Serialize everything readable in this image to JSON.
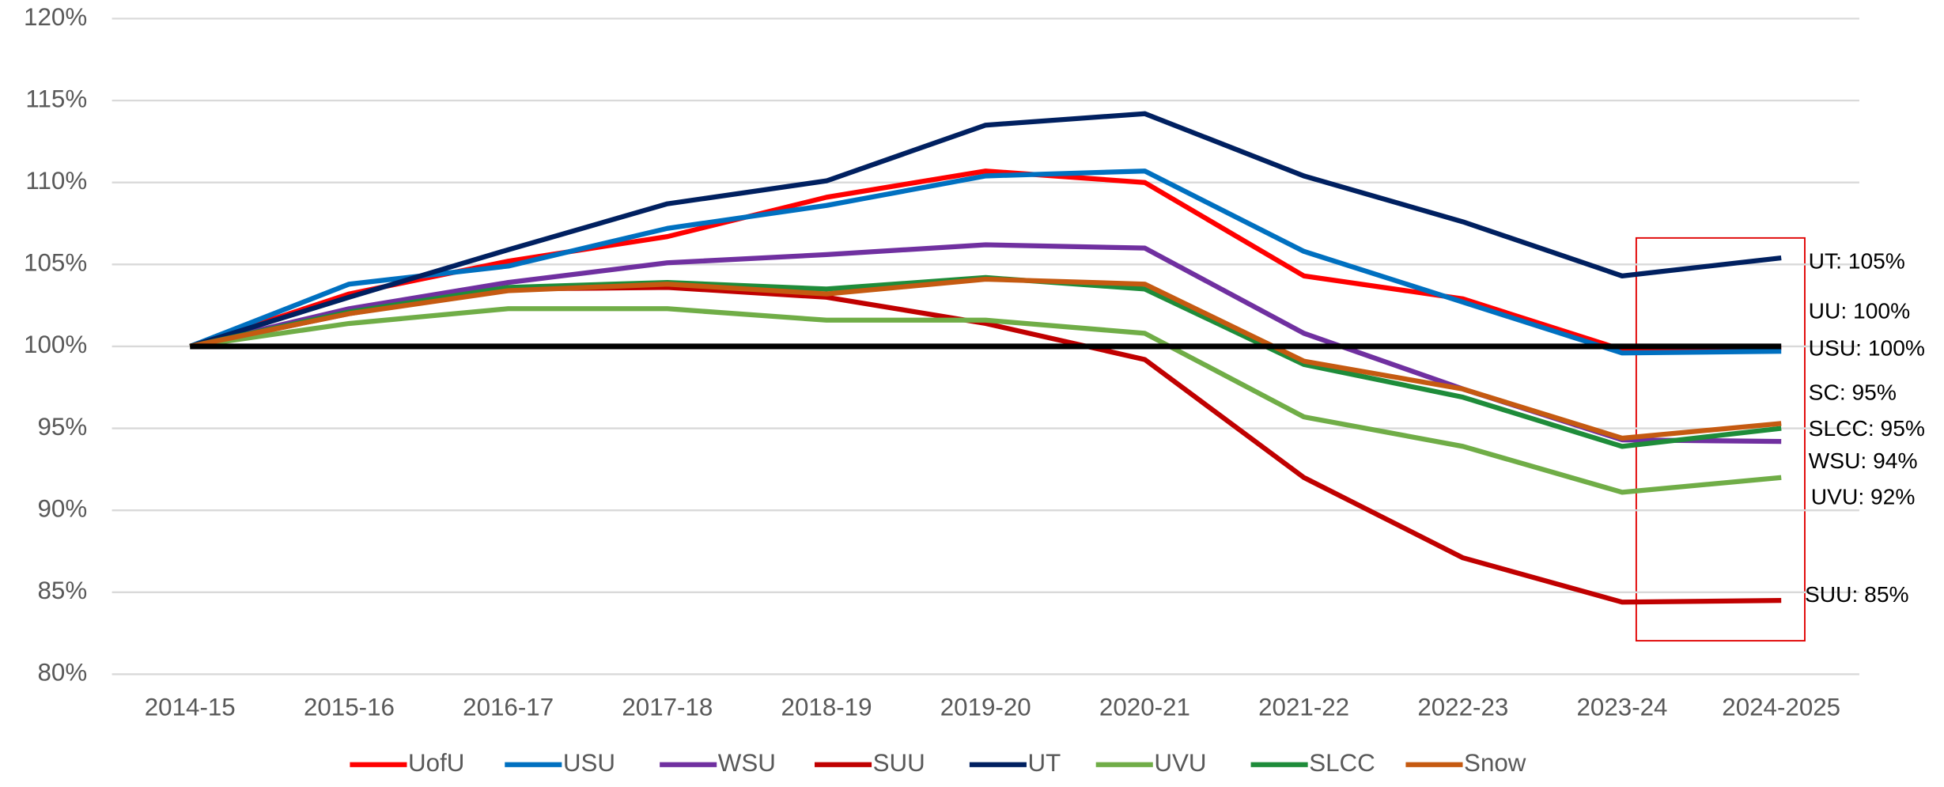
{
  "chart_data": {
    "type": "line",
    "categories": [
      "2014-15",
      "2015-16",
      "2016-17",
      "2017-18",
      "2018-19",
      "2019-20",
      "2020-21",
      "2021-22",
      "2022-23",
      "2023-24",
      "2024-2025"
    ],
    "series": [
      {
        "name": "UofU",
        "color": "#ff0000",
        "values": [
          100,
          103.2,
          105.2,
          106.7,
          109.1,
          110.7,
          110.0,
          104.3,
          102.9,
          99.8,
          99.9
        ]
      },
      {
        "name": "USU",
        "color": "#0070c0",
        "values": [
          100,
          103.8,
          104.9,
          107.2,
          108.6,
          110.4,
          110.7,
          105.8,
          102.7,
          99.6,
          99.7
        ]
      },
      {
        "name": "WSU",
        "color": "#7030a0",
        "values": [
          100,
          102.3,
          103.9,
          105.1,
          105.6,
          106.2,
          106.0,
          100.8,
          97.4,
          94.3,
          94.2
        ]
      },
      {
        "name": "SUU",
        "color": "#c00000",
        "values": [
          100,
          102.0,
          103.5,
          103.6,
          103.0,
          101.4,
          99.2,
          92.0,
          87.1,
          84.4,
          84.5
        ]
      },
      {
        "name": "UT",
        "color": "#002060",
        "values": [
          100,
          103.0,
          105.9,
          108.7,
          110.1,
          113.5,
          114.2,
          110.4,
          107.6,
          104.3,
          105.4
        ]
      },
      {
        "name": "UVU",
        "color": "#70ad47",
        "values": [
          100,
          101.4,
          102.3,
          102.3,
          101.6,
          101.6,
          100.8,
          95.7,
          93.9,
          91.1,
          92.0
        ]
      },
      {
        "name": "SLCC",
        "color": "#1e8c3a",
        "values": [
          100,
          102.1,
          103.6,
          103.9,
          103.5,
          104.2,
          103.5,
          98.9,
          96.9,
          93.9,
          95.0
        ]
      },
      {
        "name": "Snow",
        "color": "#c55a11",
        "values": [
          100,
          102.0,
          103.4,
          103.8,
          103.2,
          104.1,
          103.8,
          99.1,
          97.4,
          94.4,
          95.3
        ]
      }
    ],
    "baseline": {
      "value": 100,
      "color": "#000000"
    },
    "ylim": [
      80,
      120
    ],
    "yticks": [
      {
        "value": 80,
        "label": "80%"
      },
      {
        "value": 85,
        "label": "85%"
      },
      {
        "value": 90,
        "label": "90%"
      },
      {
        "value": 95,
        "label": "95%"
      },
      {
        "value": 100,
        "label": "100%"
      },
      {
        "value": 105,
        "label": "105%"
      },
      {
        "value": 110,
        "label": "110%"
      },
      {
        "value": 115,
        "label": "115%"
      },
      {
        "value": 120,
        "label": "120%"
      }
    ],
    "grid": true,
    "legend": "bottom",
    "annotations": [
      "UT: 105%",
      "UU: 100%",
      "USU: 100%",
      "SC: 95%",
      "SLCC: 95%",
      "WSU: 94%",
      "UVU: 92%",
      "SUU: 85%"
    ]
  }
}
